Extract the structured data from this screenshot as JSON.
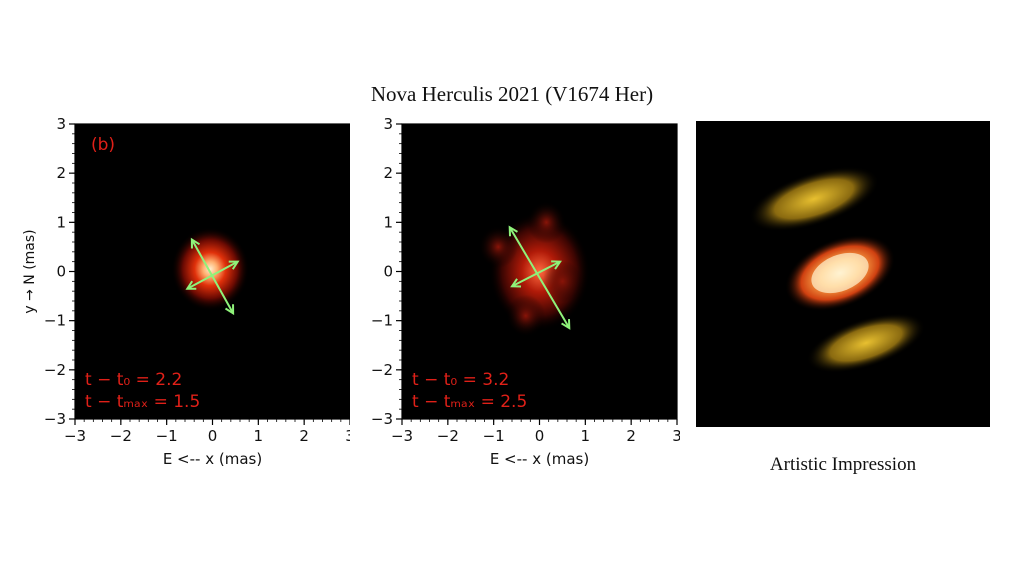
{
  "title": "Nova Herculis 2021 (V1674 Her)",
  "caption": "Artistic Impression",
  "colors": {
    "heat_core": "#ffd9b0",
    "heat_mid": "#e8340a",
    "arrow": "#8ff27a",
    "label": "#e02018",
    "disk": "#d9b020",
    "glow": "#ffb040"
  },
  "chart_data": [
    {
      "type": "heatmap",
      "panel_label": "(b)",
      "xlabel": "E <-- x (mas)",
      "ylabel": "y → N (mas)",
      "xlim": [
        -3,
        3
      ],
      "ylim": [
        -3,
        3
      ],
      "xticks": [
        "−3",
        "−2",
        "−1",
        "0",
        "1",
        "2",
        "3"
      ],
      "yticks": [
        "3",
        "2",
        "1",
        "0",
        "−1",
        "−2",
        "−3"
      ],
      "t_label": "t − t₀ = 2.2",
      "tmax_label": "t − tₘₐₓ = 1.5",
      "arrows": [
        {
          "x1": -0.45,
          "y1": 0.65,
          "x2": 0.45,
          "y2": -0.85
        },
        {
          "x1": -0.55,
          "y1": -0.35,
          "x2": 0.55,
          "y2": 0.2
        }
      ]
    },
    {
      "type": "heatmap",
      "panel_label": "",
      "xlabel": "E <-- x (mas)",
      "ylabel": "",
      "xlim": [
        -3,
        3
      ],
      "ylim": [
        -3,
        3
      ],
      "xticks": [
        "−3",
        "−2",
        "−1",
        "0",
        "1",
        "2",
        "3"
      ],
      "yticks": [
        "3",
        "2",
        "1",
        "0",
        "−1",
        "−2",
        "−3"
      ],
      "t_label": "t − t₀ = 3.2",
      "tmax_label": "t − tₘₐₓ = 2.5",
      "arrows": [
        {
          "x1": -0.65,
          "y1": 0.9,
          "x2": 0.65,
          "y2": -1.15
        },
        {
          "x1": -0.6,
          "y1": -0.3,
          "x2": 0.45,
          "y2": 0.2
        }
      ]
    }
  ]
}
